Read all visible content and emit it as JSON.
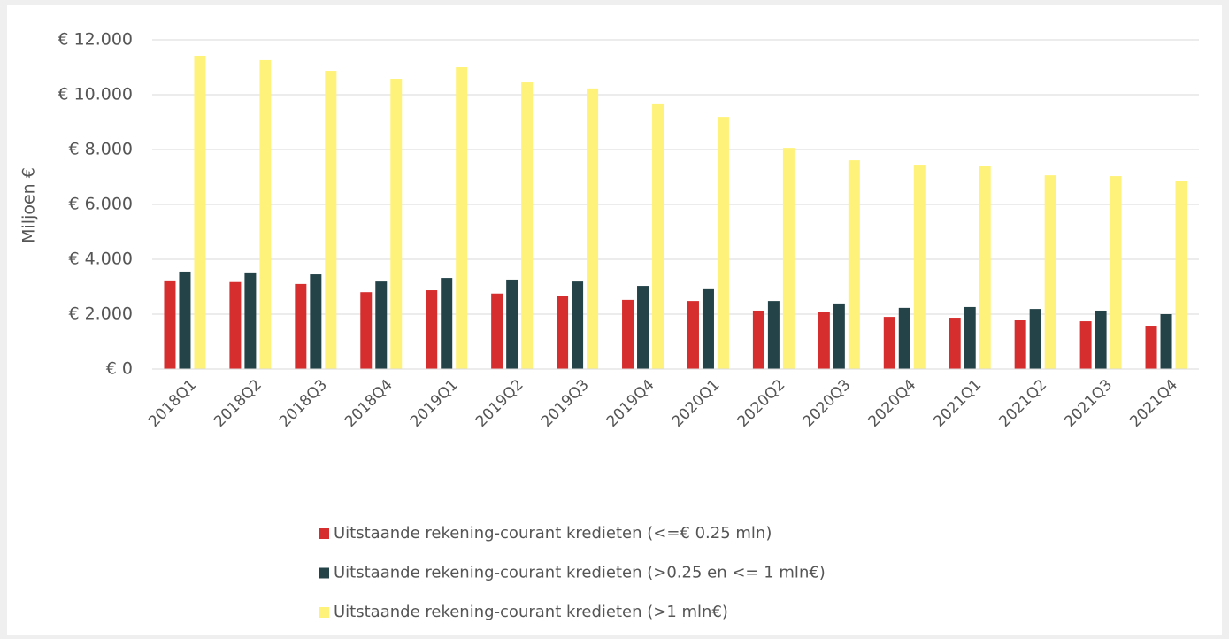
{
  "chart_data": {
    "type": "bar",
    "y_label": "Miljoen €",
    "categories": [
      "2018Q1",
      "2018Q2",
      "2018Q3",
      "2018Q4",
      "2019Q1",
      "2019Q2",
      "2019Q3",
      "2019Q4",
      "2020Q1",
      "2020Q2",
      "2020Q3",
      "2020Q4",
      "2021Q1",
      "2021Q2",
      "2021Q3",
      "2021Q4"
    ],
    "series": [
      {
        "name": "Uitstaande rekening-courant kredieten (<=€ 0.25 mln)",
        "color": "#d62e2e",
        "values": [
          3230,
          3170,
          3100,
          2800,
          2870,
          2750,
          2650,
          2520,
          2480,
          2130,
          2070,
          1900,
          1870,
          1800,
          1740,
          1580
        ]
      },
      {
        "name": "Uitstaande rekening-courant kredieten (>0.25 en <= 1 mln€)",
        "color": "#234349",
        "values": [
          3550,
          3520,
          3450,
          3190,
          3320,
          3260,
          3190,
          3030,
          2940,
          2480,
          2390,
          2230,
          2260,
          2190,
          2130,
          2000
        ]
      },
      {
        "name": "Uitstaande rekening-courant kredieten (>1 mln€)",
        "color": "#fff27a",
        "values": [
          11420,
          11260,
          10870,
          10580,
          11000,
          10450,
          10230,
          9680,
          9190,
          8060,
          7610,
          7450,
          7390,
          7060,
          7030,
          6870
        ]
      }
    ],
    "ylim": [
      0,
      12000
    ],
    "yticks": [
      {
        "value": 0,
        "label": "€ 0"
      },
      {
        "value": 2000,
        "label": "€ 2.000"
      },
      {
        "value": 4000,
        "label": "€ 4.000"
      },
      {
        "value": 6000,
        "label": "€ 6.000"
      },
      {
        "value": 8000,
        "label": "€ 8.000"
      },
      {
        "value": 10000,
        "label": "€ 10.000"
      },
      {
        "value": 12000,
        "label": "€ 12.000"
      }
    ],
    "grid": true
  }
}
